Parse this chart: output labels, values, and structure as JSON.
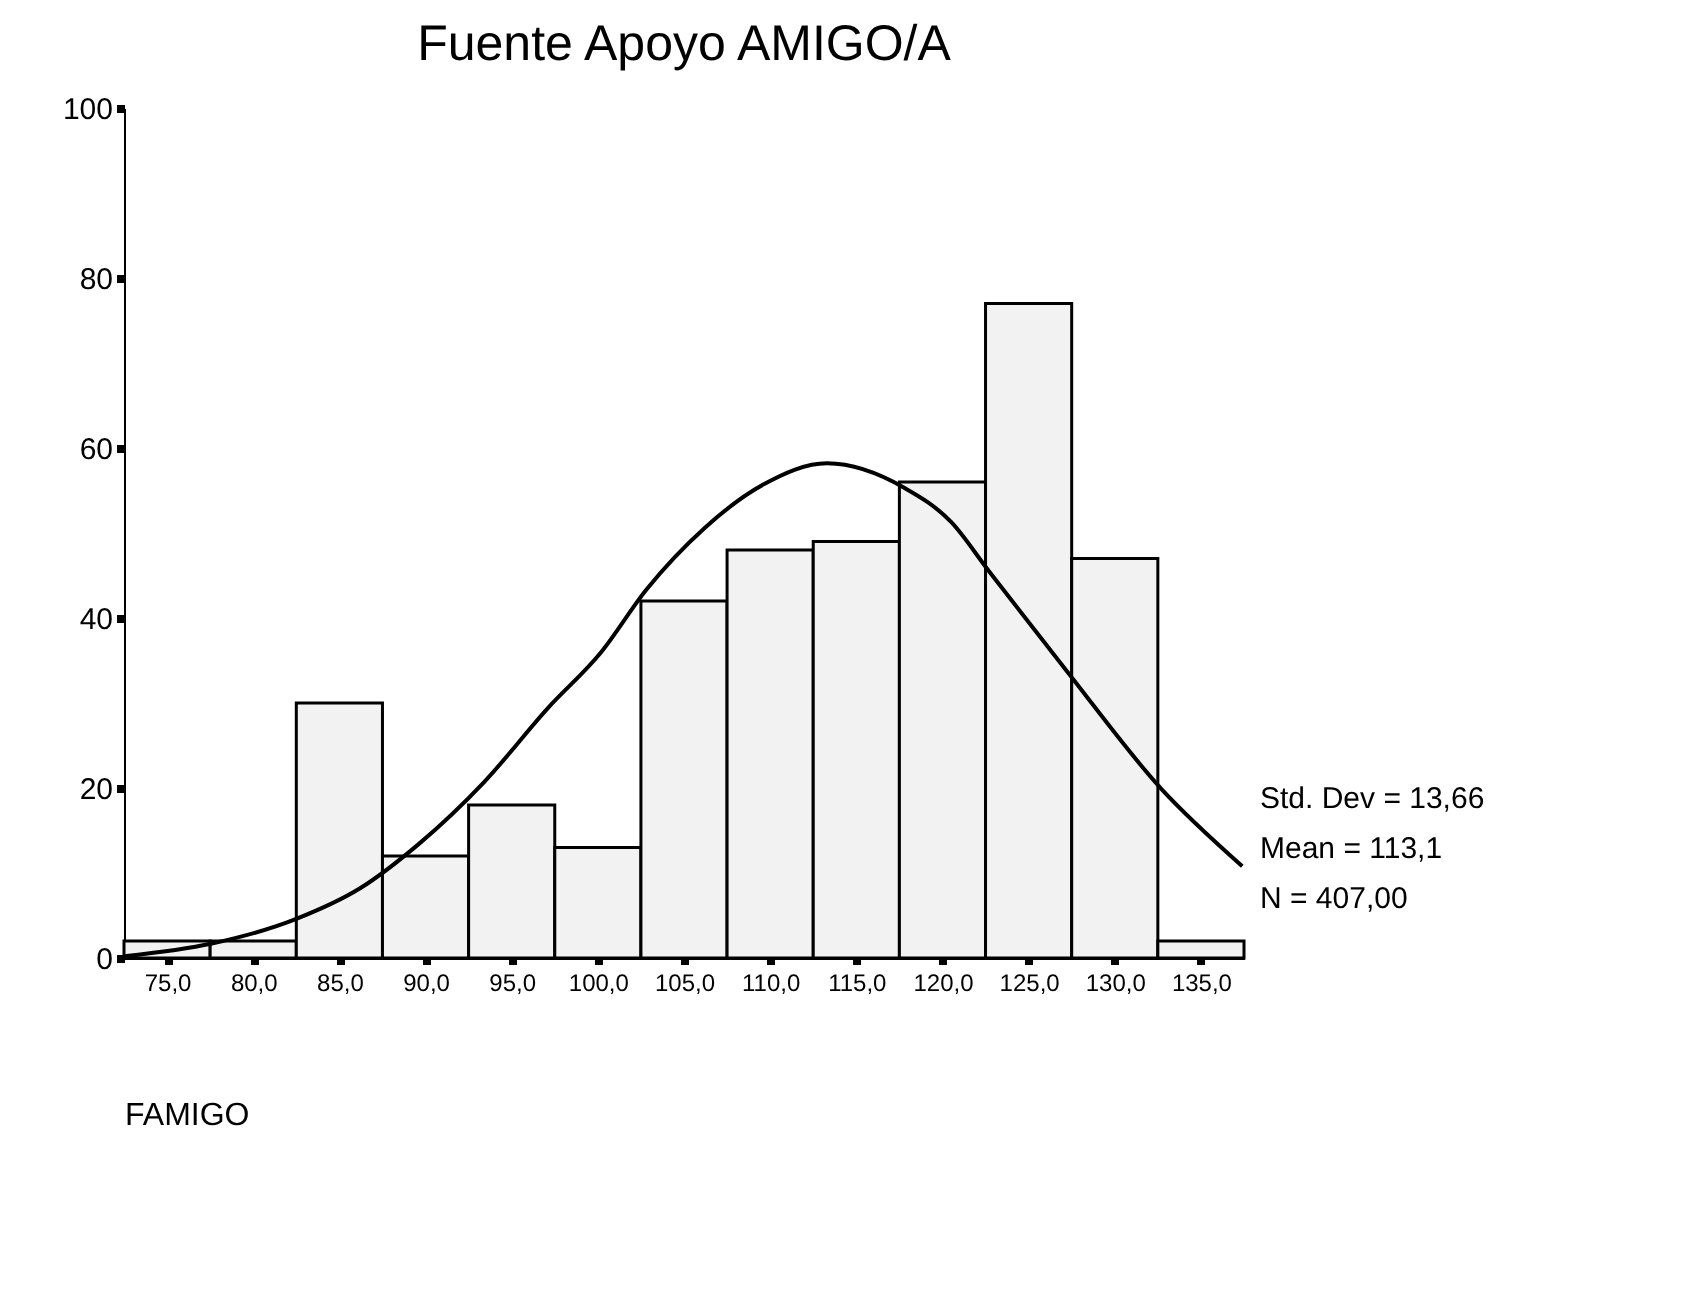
{
  "chart_data": {
    "type": "histogram",
    "title": "Fuente Apoyo AMIGO/A",
    "xlabel": "FAMIGO",
    "bins": [
      72.5,
      77.5,
      82.5,
      87.5,
      92.5,
      97.5,
      102.5,
      107.5,
      112.5,
      117.5,
      122.5,
      127.5,
      132.5,
      137.5
    ],
    "values": [
      2,
      2,
      30,
      12,
      18,
      13,
      42,
      48,
      49,
      56,
      77,
      47,
      2
    ],
    "color": "#f2f2f2",
    "series": [
      {
        "type": "line",
        "color": "#000000",
        "x": [
          72.5,
          77.6,
          82.5,
          86.2,
          89.6,
          93.4,
          97.1,
          100.2,
          102.8,
          106.2,
          109.6,
          113.3,
          117.8,
          120.5,
          122.7,
          127.2,
          132.7,
          137.4
        ],
        "values": [
          0.2,
          1.7,
          4.6,
          8.2,
          13.4,
          20.7,
          29.4,
          36,
          43.3,
          50.6,
          55.7,
          58.2,
          55.3,
          51.3,
          45.5,
          33.8,
          19.9,
          10.8
        ]
      }
    ],
    "xlim": [
      72.5,
      137.5
    ],
    "xticks": [
      {
        "value": 75,
        "label": "75,0"
      },
      {
        "value": 80,
        "label": "80,0"
      },
      {
        "value": 85,
        "label": "85,0"
      },
      {
        "value": 90,
        "label": "90,0"
      },
      {
        "value": 95,
        "label": "95,0"
      },
      {
        "value": 100,
        "label": "100,0"
      },
      {
        "value": 105,
        "label": "105,0"
      },
      {
        "value": 110,
        "label": "110,0"
      },
      {
        "value": 115,
        "label": "115,0"
      },
      {
        "value": 120,
        "label": "120,0"
      },
      {
        "value": 125,
        "label": "125,0"
      },
      {
        "value": 130,
        "label": "130,0"
      },
      {
        "value": 135,
        "label": "135,0"
      }
    ],
    "ylim": [
      0,
      100
    ],
    "yticks": [
      0,
      20,
      40,
      60,
      80,
      100
    ],
    "grid": false,
    "annotations": [
      "Std. Dev = 13,66",
      "Mean = 113,1",
      "N = 407,00"
    ]
  }
}
